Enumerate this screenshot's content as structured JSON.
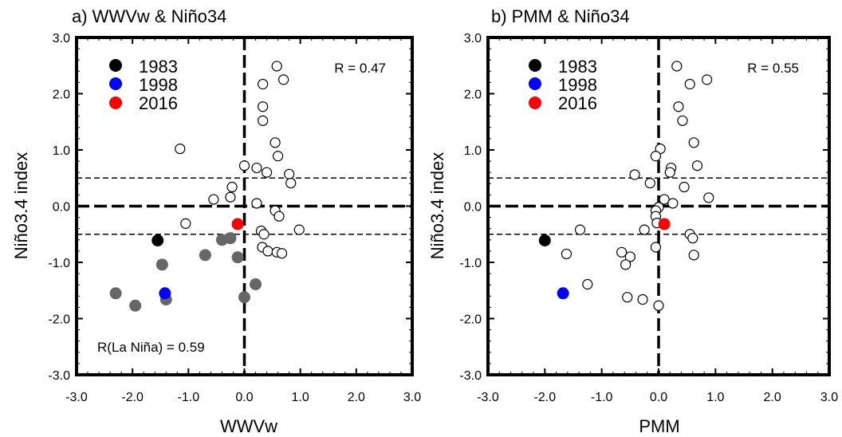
{
  "chart_data": [
    {
      "type": "scatter",
      "title": "a) WWVw & Niño34",
      "xlabel": "WWVw",
      "ylabel": "Niño3.4 index",
      "xlim": [
        -3.0,
        3.0
      ],
      "ylim": [
        -3.0,
        3.0
      ],
      "xticks": [
        "-3.0",
        "-2.0",
        "-1.0",
        "0.0",
        "1.0",
        "2.0",
        "3.0"
      ],
      "yticks": [
        "-3.0",
        "-2.0",
        "-1.0",
        "0.0",
        "1.0",
        "2.0",
        "3.0"
      ],
      "reference_lines": {
        "vertical": [
          0.0
        ],
        "horizontal": [
          0.0,
          0.5,
          -0.5
        ]
      },
      "annotations": [
        "R = 0.47",
        "R(La Niña) = 0.59"
      ],
      "legend": [
        {
          "label": "1983",
          "color": "#000000"
        },
        {
          "label": "1998",
          "color": "#0000ff"
        },
        {
          "label": "2016",
          "color": "#ff0000"
        }
      ],
      "series": [
        {
          "style": "open",
          "points": [
            [
              0.58,
              2.49
            ],
            [
              0.7,
              2.25
            ],
            [
              0.33,
              2.17
            ],
            [
              0.33,
              1.77
            ],
            [
              0.33,
              1.52
            ],
            [
              0.55,
              1.13
            ],
            [
              0.6,
              0.89
            ],
            [
              -1.15,
              1.02
            ],
            [
              0.0,
              0.72
            ],
            [
              0.22,
              0.68
            ],
            [
              0.4,
              0.6
            ],
            [
              0.8,
              0.57
            ],
            [
              0.83,
              0.41
            ],
            [
              -0.22,
              0.34
            ],
            [
              -0.55,
              0.12
            ],
            [
              -0.25,
              0.16
            ],
            [
              0.22,
              0.05
            ],
            [
              0.55,
              -0.08
            ],
            [
              0.62,
              -0.18
            ],
            [
              -1.05,
              -0.31
            ],
            [
              0.3,
              -0.44
            ],
            [
              0.35,
              -0.5
            ],
            [
              0.98,
              -0.42
            ],
            [
              0.32,
              -0.73
            ],
            [
              0.42,
              -0.8
            ],
            [
              0.58,
              -0.82
            ],
            [
              0.67,
              -0.84
            ]
          ]
        },
        {
          "style": "filled",
          "color": "#666666",
          "points": [
            [
              -2.3,
              -1.55
            ],
            [
              -1.95,
              -1.77
            ],
            [
              -1.47,
              -1.04
            ],
            [
              -1.4,
              -1.66
            ],
            [
              -0.7,
              -0.87
            ],
            [
              -0.4,
              -0.6
            ],
            [
              -0.25,
              -0.57
            ],
            [
              -0.12,
              -0.91
            ],
            [
              0.0,
              -1.62
            ],
            [
              0.2,
              -1.39
            ]
          ]
        },
        {
          "name": "1983",
          "style": "filled",
          "color": "#000000",
          "points": [
            [
              -1.55,
              -0.61
            ]
          ]
        },
        {
          "name": "1998",
          "style": "filled",
          "color": "#0000ff",
          "points": [
            [
              -1.42,
              -1.55
            ]
          ]
        },
        {
          "name": "2016",
          "style": "filled",
          "color": "#ff0000",
          "points": [
            [
              -0.12,
              -0.32
            ]
          ]
        }
      ]
    },
    {
      "type": "scatter",
      "title": "b) PMM & Niño34",
      "xlabel": "PMM",
      "ylabel": "Niño3.4 index",
      "xlim": [
        -3.0,
        3.0
      ],
      "ylim": [
        -3.0,
        3.0
      ],
      "xticks": [
        "-3.0",
        "-2.0",
        "-1.0",
        "0.0",
        "1.0",
        "2.0",
        "3.0"
      ],
      "yticks": [
        "-3.0",
        "-2.0",
        "-1.0",
        "0.0",
        "1.0",
        "2.0",
        "3.0"
      ],
      "reference_lines": {
        "vertical": [
          0.0
        ],
        "horizontal": [
          0.0,
          0.5,
          -0.5
        ]
      },
      "annotations": [
        "R = 0.55"
      ],
      "legend": [
        {
          "label": "1983",
          "color": "#000000"
        },
        {
          "label": "1998",
          "color": "#0000ff"
        },
        {
          "label": "2016",
          "color": "#ff0000"
        }
      ],
      "series": [
        {
          "style": "open",
          "points": [
            [
              0.32,
              2.49
            ],
            [
              0.85,
              2.25
            ],
            [
              0.55,
              2.17
            ],
            [
              0.35,
              1.77
            ],
            [
              0.42,
              1.52
            ],
            [
              0.62,
              1.13
            ],
            [
              0.03,
              1.02
            ],
            [
              -0.05,
              0.89
            ],
            [
              0.68,
              0.72
            ],
            [
              0.22,
              0.68
            ],
            [
              0.2,
              0.6
            ],
            [
              -0.42,
              0.56
            ],
            [
              -0.15,
              0.41
            ],
            [
              0.45,
              0.34
            ],
            [
              0.88,
              0.15
            ],
            [
              0.1,
              0.12
            ],
            [
              0.25,
              0.05
            ],
            [
              0.0,
              -0.02
            ],
            [
              -0.05,
              -0.08
            ],
            [
              -0.05,
              -0.18
            ],
            [
              -0.03,
              -0.3
            ],
            [
              -0.25,
              -0.42
            ],
            [
              -1.38,
              -0.42
            ],
            [
              0.55,
              -0.5
            ],
            [
              0.6,
              -0.57
            ],
            [
              -0.05,
              -0.73
            ],
            [
              -0.65,
              -0.82
            ],
            [
              -0.5,
              -0.9
            ],
            [
              -0.58,
              -1.04
            ],
            [
              0.62,
              -0.87
            ],
            [
              -1.62,
              -0.85
            ],
            [
              -1.25,
              -1.39
            ],
            [
              -0.55,
              -1.62
            ],
            [
              -0.28,
              -1.66
            ],
            [
              0.0,
              -1.77
            ]
          ]
        },
        {
          "name": "1983",
          "style": "filled",
          "color": "#000000",
          "points": [
            [
              -2.0,
              -0.61
            ]
          ]
        },
        {
          "name": "1998",
          "style": "filled",
          "color": "#0000ff",
          "points": [
            [
              -1.68,
              -1.55
            ]
          ]
        },
        {
          "name": "2016",
          "style": "filled",
          "color": "#ff0000",
          "points": [
            [
              0.1,
              -0.32
            ]
          ]
        }
      ]
    }
  ]
}
